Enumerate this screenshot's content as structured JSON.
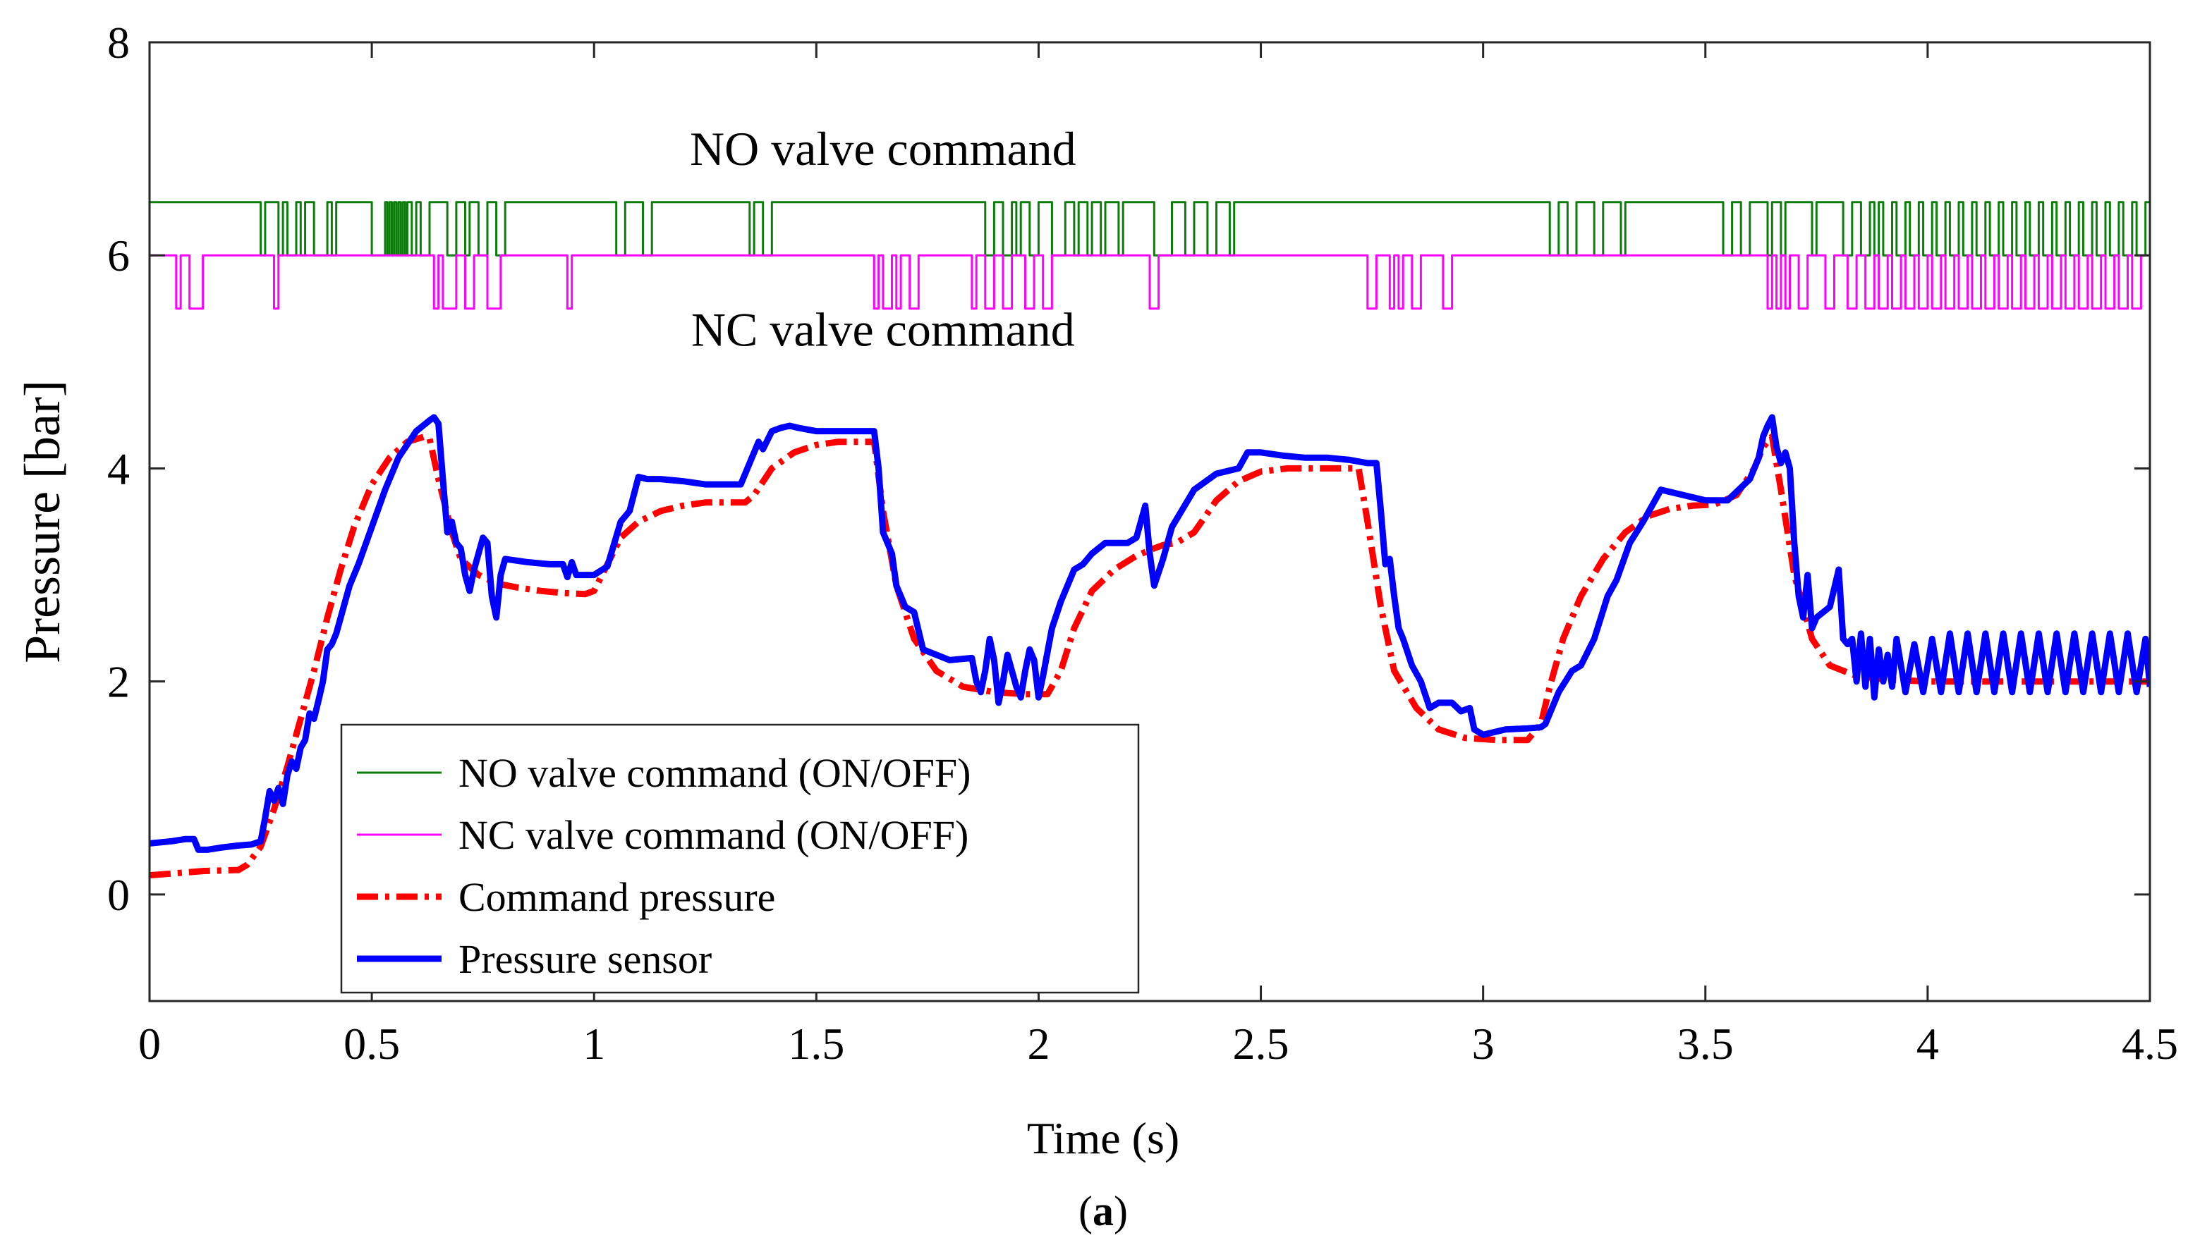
{
  "chart_data": {
    "type": "line",
    "title": "",
    "xlabel": "Time (s)",
    "ylabel": "Pressure [bar]",
    "caption_letter": "a",
    "caption_open": "(",
    "caption_close": ")",
    "xlim": [
      0,
      4.5
    ],
    "ylim": [
      -1,
      8
    ],
    "xticks": [
      0,
      0.5,
      1,
      1.5,
      2,
      2.5,
      3,
      3.5,
      4,
      4.5
    ],
    "xtick_labels": [
      "0",
      "0.5",
      "1",
      "1.5",
      "2",
      "2.5",
      "3",
      "3.5",
      "4",
      "4.5"
    ],
    "yticks": [
      0,
      2,
      4,
      6,
      8
    ],
    "ytick_labels": [
      "0",
      "2",
      "4",
      "6",
      "8"
    ],
    "grid": false,
    "legend_position": "bottom-left",
    "annotations": [
      {
        "text": "NO valve command",
        "x": 1.65,
        "y": 6.85
      },
      {
        "text": "NC valve command",
        "x": 1.65,
        "y": 5.15
      }
    ],
    "colors": {
      "no_valve": "#0a7d0a",
      "nc_valve": "#ff00ff",
      "command": "#ff0000",
      "sensor": "#0000ff"
    },
    "series": [
      {
        "name": "NO valve command (ON/OFF)",
        "style": "step",
        "levels": {
          "on": 6.5,
          "off": 6.0
        },
        "pulses": [
          [
            0.25,
            0.26
          ],
          [
            0.29,
            0.3
          ],
          [
            0.31,
            0.33
          ],
          [
            0.34,
            0.35
          ],
          [
            0.37,
            0.4
          ],
          [
            0.41,
            0.42
          ],
          [
            0.5,
            0.53
          ],
          [
            0.535,
            0.54
          ],
          [
            0.545,
            0.55
          ],
          [
            0.555,
            0.56
          ],
          [
            0.565,
            0.57
          ],
          [
            0.575,
            0.58
          ],
          [
            0.59,
            0.6
          ],
          [
            0.61,
            0.63
          ],
          [
            0.67,
            0.69
          ],
          [
            0.71,
            0.72
          ],
          [
            0.74,
            0.76
          ],
          [
            0.78,
            0.8
          ],
          [
            1.05,
            1.07
          ],
          [
            1.11,
            1.13
          ],
          [
            1.35,
            1.36
          ],
          [
            1.38,
            1.4
          ],
          [
            1.88,
            1.9
          ],
          [
            1.92,
            1.94
          ],
          [
            1.95,
            1.96
          ],
          [
            1.98,
            2.0
          ],
          [
            2.03,
            2.06
          ],
          [
            2.08,
            2.09
          ],
          [
            2.11,
            2.12
          ],
          [
            2.14,
            2.15
          ],
          [
            2.18,
            2.19
          ],
          [
            2.26,
            2.3
          ],
          [
            2.33,
            2.35
          ],
          [
            2.38,
            2.4
          ],
          [
            2.43,
            2.44
          ],
          [
            3.15,
            3.17
          ],
          [
            3.19,
            3.21
          ],
          [
            3.25,
            3.27
          ],
          [
            3.31,
            3.32
          ],
          [
            3.54,
            3.56
          ],
          [
            3.58,
            3.6
          ],
          [
            3.64,
            3.65
          ],
          [
            3.67,
            3.68
          ],
          [
            3.74,
            3.75
          ],
          [
            3.81,
            3.83
          ],
          [
            3.85,
            3.87
          ],
          [
            3.88,
            3.89
          ],
          [
            3.9,
            3.92
          ],
          [
            3.93,
            3.95
          ],
          [
            3.96,
            3.98
          ],
          [
            3.99,
            4.01
          ],
          [
            4.02,
            4.04
          ],
          [
            4.05,
            4.07
          ],
          [
            4.08,
            4.1
          ],
          [
            4.11,
            4.13
          ],
          [
            4.14,
            4.16
          ],
          [
            4.17,
            4.19
          ],
          [
            4.2,
            4.22
          ],
          [
            4.23,
            4.25
          ],
          [
            4.26,
            4.28
          ],
          [
            4.29,
            4.31
          ],
          [
            4.32,
            4.34
          ],
          [
            4.35,
            4.37
          ],
          [
            4.38,
            4.4
          ],
          [
            4.41,
            4.43
          ],
          [
            4.44,
            4.46
          ],
          [
            4.47,
            4.49
          ]
        ]
      },
      {
        "name": "NC valve command (ON/OFF)",
        "style": "step",
        "levels": {
          "on": 6.0,
          "off": 5.5
        },
        "pulses": [
          [
            0.06,
            0.07
          ],
          [
            0.09,
            0.12
          ],
          [
            0.28,
            0.29
          ],
          [
            0.64,
            0.65
          ],
          [
            0.66,
            0.69
          ],
          [
            0.71,
            0.73
          ],
          [
            0.76,
            0.79
          ],
          [
            0.94,
            0.95
          ],
          [
            1.63,
            1.64
          ],
          [
            1.65,
            1.67
          ],
          [
            1.68,
            1.69
          ],
          [
            1.71,
            1.73
          ],
          [
            1.85,
            1.86
          ],
          [
            1.88,
            1.9
          ],
          [
            1.92,
            1.94
          ],
          [
            1.97,
            1.99
          ],
          [
            2.01,
            2.03
          ],
          [
            2.25,
            2.27
          ],
          [
            2.74,
            2.76
          ],
          [
            2.79,
            2.8
          ],
          [
            2.81,
            2.82
          ],
          [
            2.84,
            2.86
          ],
          [
            2.91,
            2.93
          ],
          [
            3.64,
            3.65
          ],
          [
            3.66,
            3.67
          ],
          [
            3.68,
            3.69
          ],
          [
            3.71,
            3.73
          ],
          [
            3.77,
            3.79
          ],
          [
            3.82,
            3.84
          ],
          [
            3.86,
            3.88
          ],
          [
            3.89,
            3.91
          ],
          [
            3.92,
            3.94
          ],
          [
            3.95,
            3.97
          ],
          [
            3.98,
            4.0
          ],
          [
            4.01,
            4.03
          ],
          [
            4.04,
            4.06
          ],
          [
            4.07,
            4.09
          ],
          [
            4.1,
            4.12
          ],
          [
            4.13,
            4.15
          ],
          [
            4.16,
            4.18
          ],
          [
            4.19,
            4.21
          ],
          [
            4.22,
            4.24
          ],
          [
            4.25,
            4.27
          ],
          [
            4.28,
            4.3
          ],
          [
            4.31,
            4.33
          ],
          [
            4.34,
            4.36
          ],
          [
            4.37,
            4.39
          ],
          [
            4.4,
            4.42
          ],
          [
            4.43,
            4.45
          ],
          [
            4.46,
            4.48
          ]
        ]
      },
      {
        "name": "Command pressure",
        "style": "dashdot",
        "x": [
          0,
          0.06,
          0.12,
          0.2,
          0.22,
          0.25,
          0.28,
          0.31,
          0.34,
          0.37,
          0.4,
          0.43,
          0.46,
          0.5,
          0.54,
          0.58,
          0.62,
          0.63,
          0.65,
          0.68,
          0.7,
          0.74,
          0.78,
          0.83,
          0.88,
          0.93,
          0.98,
          1.0,
          1.03,
          1.06,
          1.1,
          1.15,
          1.2,
          1.25,
          1.3,
          1.34,
          1.36,
          1.4,
          1.45,
          1.5,
          1.55,
          1.6,
          1.63,
          1.65,
          1.68,
          1.72,
          1.77,
          1.83,
          1.9,
          1.97,
          2.02,
          2.05,
          2.08,
          2.12,
          2.17,
          2.22,
          2.26,
          2.28,
          2.31,
          2.35,
          2.4,
          2.45,
          2.5,
          2.56,
          2.62,
          2.68,
          2.72,
          2.74,
          2.77,
          2.8,
          2.85,
          2.9,
          2.96,
          3.03,
          3.1,
          3.13,
          3.15,
          3.18,
          3.22,
          3.27,
          3.32,
          3.37,
          3.42,
          3.47,
          3.52,
          3.57,
          3.61,
          3.63,
          3.65,
          3.67,
          3.7,
          3.74,
          3.78,
          3.84,
          3.9,
          4.0,
          4.2,
          4.5
        ],
        "y": [
          0.18,
          0.2,
          0.22,
          0.23,
          0.28,
          0.45,
          0.8,
          1.2,
          1.65,
          2.1,
          2.6,
          3.05,
          3.45,
          3.85,
          4.1,
          4.25,
          4.3,
          4.28,
          3.9,
          3.4,
          3.15,
          3.0,
          2.92,
          2.88,
          2.85,
          2.83,
          2.82,
          2.85,
          3.1,
          3.35,
          3.5,
          3.6,
          3.65,
          3.68,
          3.68,
          3.68,
          3.75,
          4.0,
          4.15,
          4.22,
          4.25,
          4.25,
          4.25,
          3.6,
          2.9,
          2.4,
          2.1,
          1.95,
          1.9,
          1.88,
          1.88,
          2.1,
          2.5,
          2.85,
          3.05,
          3.18,
          3.25,
          3.28,
          3.3,
          3.4,
          3.7,
          3.88,
          3.97,
          4.0,
          4.0,
          4.0,
          4.0,
          3.5,
          2.7,
          2.1,
          1.75,
          1.55,
          1.47,
          1.45,
          1.45,
          1.6,
          1.95,
          2.4,
          2.8,
          3.15,
          3.4,
          3.55,
          3.62,
          3.65,
          3.66,
          3.75,
          4.0,
          4.2,
          4.3,
          3.8,
          3.0,
          2.4,
          2.15,
          2.05,
          2.02,
          2.0,
          2.0,
          2.0
        ]
      },
      {
        "name": "Pressure sensor",
        "style": "solid",
        "x": [
          0,
          0.05,
          0.08,
          0.1,
          0.11,
          0.13,
          0.16,
          0.2,
          0.23,
          0.25,
          0.26,
          0.27,
          0.28,
          0.29,
          0.3,
          0.31,
          0.32,
          0.33,
          0.34,
          0.35,
          0.36,
          0.37,
          0.38,
          0.39,
          0.4,
          0.41,
          0.42,
          0.43,
          0.44,
          0.45,
          0.47,
          0.5,
          0.53,
          0.56,
          0.6,
          0.63,
          0.64,
          0.65,
          0.66,
          0.67,
          0.68,
          0.69,
          0.7,
          0.71,
          0.72,
          0.73,
          0.74,
          0.75,
          0.76,
          0.77,
          0.78,
          0.79,
          0.8,
          0.85,
          0.9,
          0.93,
          0.94,
          0.95,
          0.96,
          1.0,
          1.03,
          1.06,
          1.08,
          1.1,
          1.12,
          1.15,
          1.2,
          1.25,
          1.3,
          1.33,
          1.35,
          1.37,
          1.38,
          1.4,
          1.42,
          1.44,
          1.46,
          1.5,
          1.55,
          1.6,
          1.63,
          1.64,
          1.65,
          1.66,
          1.67,
          1.68,
          1.7,
          1.72,
          1.74,
          1.8,
          1.85,
          1.86,
          1.87,
          1.88,
          1.89,
          1.9,
          1.91,
          1.92,
          1.93,
          1.94,
          1.95,
          1.96,
          1.97,
          1.98,
          1.99,
          2.0,
          2.01,
          2.03,
          2.05,
          2.08,
          2.1,
          2.12,
          2.15,
          2.2,
          2.22,
          2.24,
          2.25,
          2.26,
          2.28,
          2.3,
          2.35,
          2.4,
          2.45,
          2.47,
          2.5,
          2.55,
          2.6,
          2.65,
          2.7,
          2.74,
          2.76,
          2.77,
          2.78,
          2.79,
          2.8,
          2.81,
          2.82,
          2.84,
          2.86,
          2.88,
          2.9,
          2.93,
          2.95,
          2.97,
          2.98,
          3.0,
          3.05,
          3.1,
          3.13,
          3.14,
          3.15,
          3.17,
          3.2,
          3.22,
          3.25,
          3.28,
          3.3,
          3.33,
          3.36,
          3.4,
          3.45,
          3.5,
          3.55,
          3.6,
          3.62,
          3.63,
          3.64,
          3.65,
          3.66,
          3.67,
          3.68,
          3.69,
          3.7,
          3.71,
          3.72,
          3.73,
          3.74,
          3.75,
          3.78,
          3.8,
          3.81,
          3.82,
          3.83,
          3.84,
          3.85,
          3.86,
          3.87,
          3.88,
          3.89,
          3.9,
          3.91,
          3.92,
          3.93,
          3.95,
          3.97,
          3.99,
          4.01,
          4.03,
          4.05,
          4.07,
          4.09,
          4.11,
          4.13,
          4.15,
          4.17,
          4.19,
          4.21,
          4.23,
          4.25,
          4.27,
          4.29,
          4.31,
          4.33,
          4.35,
          4.37,
          4.39,
          4.41,
          4.43,
          4.45,
          4.47,
          4.49,
          4.5
        ],
        "y": [
          0.48,
          0.5,
          0.52,
          0.52,
          0.42,
          0.42,
          0.44,
          0.46,
          0.47,
          0.5,
          0.72,
          0.97,
          0.88,
          1.0,
          0.85,
          1.12,
          1.25,
          1.18,
          1.38,
          1.45,
          1.7,
          1.65,
          1.82,
          2.0,
          2.3,
          2.35,
          2.45,
          2.6,
          2.75,
          2.9,
          3.1,
          3.45,
          3.8,
          4.1,
          4.35,
          4.45,
          4.48,
          4.42,
          3.9,
          3.4,
          3.5,
          3.3,
          3.25,
          3.0,
          2.85,
          3.05,
          3.2,
          3.35,
          3.3,
          2.8,
          2.6,
          3.0,
          3.15,
          3.12,
          3.1,
          3.1,
          2.98,
          3.12,
          3.0,
          3.0,
          3.08,
          3.5,
          3.6,
          3.92,
          3.9,
          3.9,
          3.88,
          3.85,
          3.85,
          3.85,
          4.05,
          4.25,
          4.18,
          4.35,
          4.38,
          4.4,
          4.38,
          4.35,
          4.35,
          4.35,
          4.35,
          4.0,
          3.4,
          3.3,
          3.2,
          2.9,
          2.7,
          2.65,
          2.3,
          2.2,
          2.22,
          2.0,
          1.9,
          2.1,
          2.4,
          2.2,
          1.8,
          2.0,
          2.25,
          2.1,
          1.95,
          1.85,
          2.1,
          2.3,
          2.2,
          1.85,
          2.05,
          2.5,
          2.75,
          3.05,
          3.1,
          3.2,
          3.3,
          3.3,
          3.35,
          3.65,
          3.2,
          2.9,
          3.15,
          3.45,
          3.8,
          3.95,
          4.0,
          4.15,
          4.15,
          4.12,
          4.1,
          4.1,
          4.08,
          4.05,
          4.05,
          3.6,
          3.1,
          3.15,
          2.8,
          2.5,
          2.4,
          2.15,
          2.0,
          1.75,
          1.8,
          1.8,
          1.72,
          1.75,
          1.55,
          1.5,
          1.55,
          1.56,
          1.57,
          1.6,
          1.7,
          1.9,
          2.1,
          2.15,
          2.4,
          2.8,
          2.95,
          3.3,
          3.5,
          3.8,
          3.75,
          3.7,
          3.7,
          3.9,
          4.1,
          4.3,
          4.4,
          4.48,
          4.2,
          4.05,
          4.15,
          4.0,
          3.3,
          2.8,
          2.6,
          3.0,
          2.5,
          2.6,
          2.7,
          3.05,
          2.4,
          2.35,
          2.4,
          2.0,
          2.45,
          1.95,
          2.4,
          1.85,
          2.3,
          2.0,
          2.25,
          1.95,
          2.4,
          1.9,
          2.35,
          1.9,
          2.4,
          1.9,
          2.45,
          1.9,
          2.45,
          1.9,
          2.45,
          1.9,
          2.45,
          1.9,
          2.45,
          1.9,
          2.45,
          1.9,
          2.45,
          1.9,
          2.45,
          1.9,
          2.45,
          1.9,
          2.45,
          1.9,
          2.45,
          1.9,
          2.4,
          1.95
        ]
      }
    ]
  }
}
